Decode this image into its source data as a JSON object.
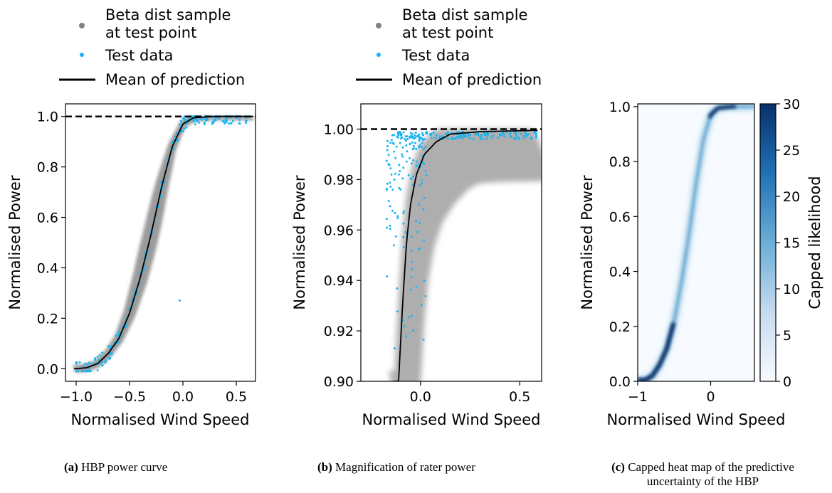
{
  "legend": {
    "beta_label_line1": "Beta dist sample",
    "beta_label_line2": "at test point",
    "test_label": "Test data",
    "mean_label": "Mean of prediction"
  },
  "captions": {
    "a_tag": "(a)",
    "a_text": "HBP power curve",
    "b_tag": "(b)",
    "b_text": "Magnification of rater power",
    "c_tag": "(c)",
    "c_text_line1": "Capped heat map of the predictive",
    "c_text_line2": "uncertainty of the HBP"
  },
  "colors": {
    "beta_sample": "#808080",
    "test_data": "#1ab4f0",
    "mean": "#000000",
    "heatmap_max": "#08306b"
  },
  "chart_data": [
    {
      "type": "scatter",
      "panel": "a",
      "xlabel": "Normalised Wind Speed",
      "ylabel": "Normalised Power",
      "xlim": [
        -1.1,
        0.68
      ],
      "ylim": [
        -0.05,
        1.05
      ],
      "xticks": [
        {
          "v": -1.0,
          "t": "−1.0"
        },
        {
          "v": -0.5,
          "t": "−0.5"
        },
        {
          "v": 0.0,
          "t": "0.0"
        },
        {
          "v": 0.5,
          "t": "0.5"
        }
      ],
      "yticks": [
        {
          "v": 0.0,
          "t": "0.0"
        },
        {
          "v": 0.2,
          "t": "0.2"
        },
        {
          "v": 0.4,
          "t": "0.4"
        },
        {
          "v": 0.6,
          "t": "0.6"
        },
        {
          "v": 0.8,
          "t": "0.8"
        },
        {
          "v": 1.0,
          "t": "1.0"
        }
      ],
      "rated_line": 1.0,
      "mean_curve": [
        [
          -1.0,
          0.0
        ],
        [
          -0.9,
          0.004
        ],
        [
          -0.8,
          0.02
        ],
        [
          -0.7,
          0.06
        ],
        [
          -0.6,
          0.12
        ],
        [
          -0.5,
          0.22
        ],
        [
          -0.4,
          0.36
        ],
        [
          -0.3,
          0.53
        ],
        [
          -0.2,
          0.72
        ],
        [
          -0.1,
          0.88
        ],
        [
          0.0,
          0.97
        ],
        [
          0.1,
          0.995
        ],
        [
          0.3,
          1.0
        ],
        [
          0.6,
          1.0
        ]
      ],
      "outlier": [
        -0.03,
        0.27
      ]
    },
    {
      "type": "scatter",
      "panel": "b",
      "xlabel": "Normalised Wind Speed",
      "ylabel": "Normalised Power",
      "xlim": [
        -0.3,
        0.61
      ],
      "ylim": [
        0.9,
        1.01
      ],
      "xticks": [
        {
          "v": 0.0,
          "t": "0.0"
        },
        {
          "v": 0.5,
          "t": "0.5"
        }
      ],
      "yticks": [
        {
          "v": 0.9,
          "t": "0.90"
        },
        {
          "v": 0.92,
          "t": "0.92"
        },
        {
          "v": 0.94,
          "t": "0.94"
        },
        {
          "v": 0.96,
          "t": "0.96"
        },
        {
          "v": 0.98,
          "t": "0.98"
        },
        {
          "v": 1.0,
          "t": "1.00"
        }
      ],
      "rated_line": 1.0,
      "mean_curve": [
        [
          -0.11,
          0.9
        ],
        [
          -0.09,
          0.93
        ],
        [
          -0.07,
          0.955
        ],
        [
          -0.05,
          0.97
        ],
        [
          -0.02,
          0.982
        ],
        [
          0.02,
          0.99
        ],
        [
          0.08,
          0.995
        ],
        [
          0.15,
          0.998
        ],
        [
          0.3,
          0.999
        ],
        [
          0.6,
          0.9995
        ]
      ]
    },
    {
      "type": "heatmap",
      "panel": "c",
      "xlabel": "Normalised Wind Speed",
      "ylabel": "Normalised Power",
      "xlim": [
        -1.0,
        0.6
      ],
      "ylim": [
        0.0,
        1.01
      ],
      "xticks": [
        {
          "v": -1,
          "t": "−1"
        },
        {
          "v": 0,
          "t": "0"
        }
      ],
      "yticks": [
        {
          "v": 0.0,
          "t": "0.0"
        },
        {
          "v": 0.2,
          "t": "0.2"
        },
        {
          "v": 0.4,
          "t": "0.4"
        },
        {
          "v": 0.6,
          "t": "0.6"
        },
        {
          "v": 0.8,
          "t": "0.8"
        },
        {
          "v": 1.0,
          "t": "1.0"
        }
      ],
      "colorbar": {
        "label": "Capped likelihood",
        "range": [
          0,
          30
        ],
        "ticks": [
          {
            "v": 0,
            "t": "0"
          },
          {
            "v": 5,
            "t": "5"
          },
          {
            "v": 10,
            "t": "10"
          },
          {
            "v": 15,
            "t": "15"
          },
          {
            "v": 20,
            "t": "20"
          },
          {
            "v": 25,
            "t": "25"
          },
          {
            "v": 30,
            "t": "30"
          }
        ]
      }
    }
  ]
}
